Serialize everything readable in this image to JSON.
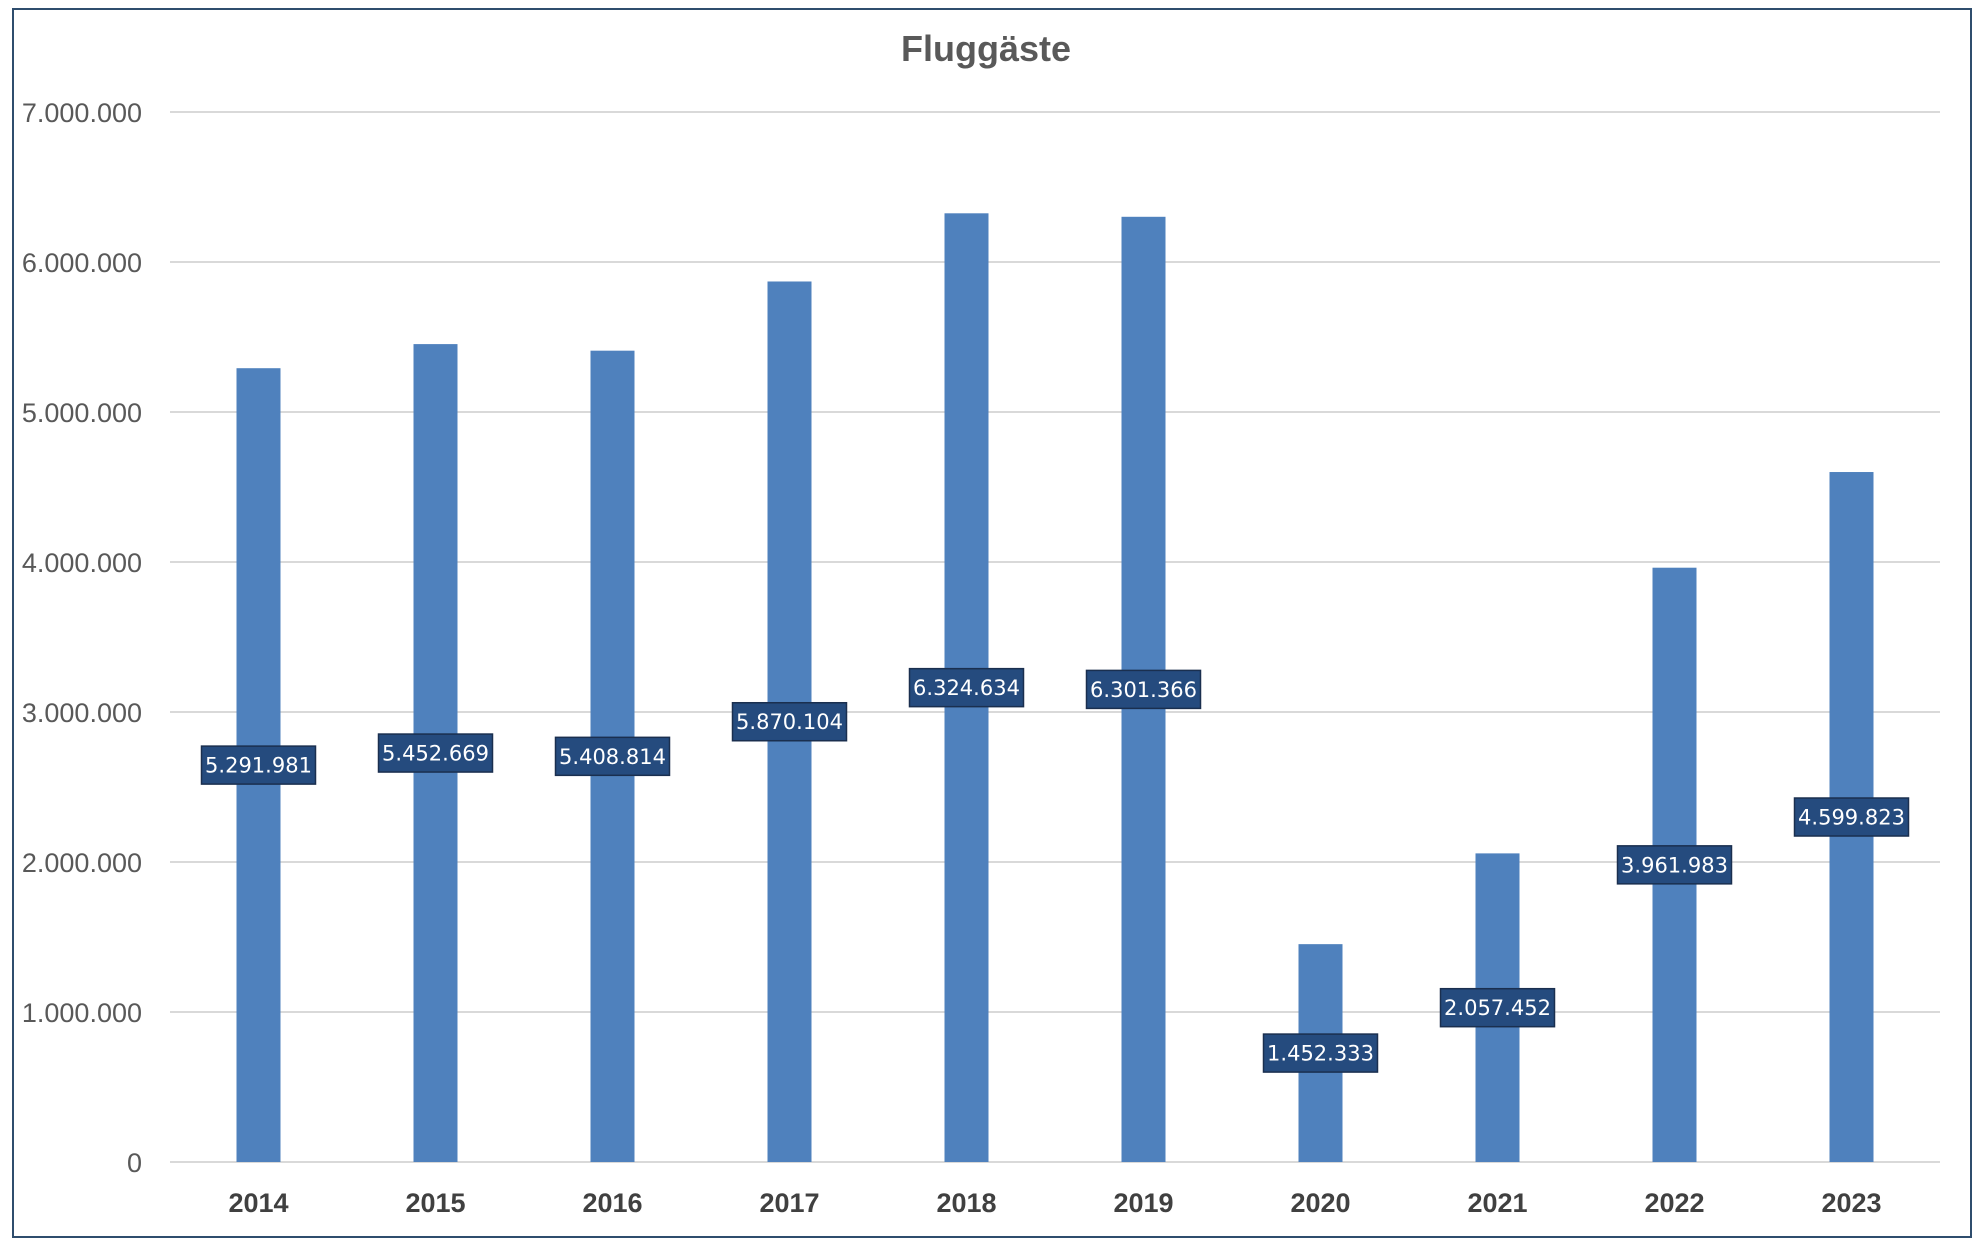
{
  "chart_data": {
    "type": "bar",
    "title": "Fluggäste",
    "xlabel": "",
    "ylabel": "",
    "categories": [
      "2014",
      "2015",
      "2016",
      "2017",
      "2018",
      "2019",
      "2020",
      "2021",
      "2022",
      "2023"
    ],
    "values": [
      5291981,
      5452669,
      5408814,
      5870104,
      6324634,
      6301366,
      1452333,
      2057452,
      3961983,
      4599823
    ],
    "data_labels": [
      "5.291.981",
      "5.452.669",
      "5.408.814",
      "5.870.104",
      "6.324.634",
      "6.301.366",
      "1.452.333",
      "2.057.452",
      "3.961.983",
      "4.599.823"
    ],
    "ylim": [
      0,
      7000000
    ],
    "yticks": [
      0,
      1000000,
      2000000,
      3000000,
      4000000,
      5000000,
      6000000,
      7000000
    ],
    "ytick_labels": [
      "0",
      "1.000.000",
      "2.000.000",
      "3.000.000",
      "4.000.000",
      "5.000.000",
      "6.000.000",
      "7.000.000"
    ],
    "grid": true,
    "legend": "none",
    "colors": {
      "bar": "#4f81bd",
      "label_box": "#254b7e",
      "label_border": "#1a2f4f",
      "grid": "#d9d9d9",
      "frame": "#2f4d6d"
    }
  }
}
